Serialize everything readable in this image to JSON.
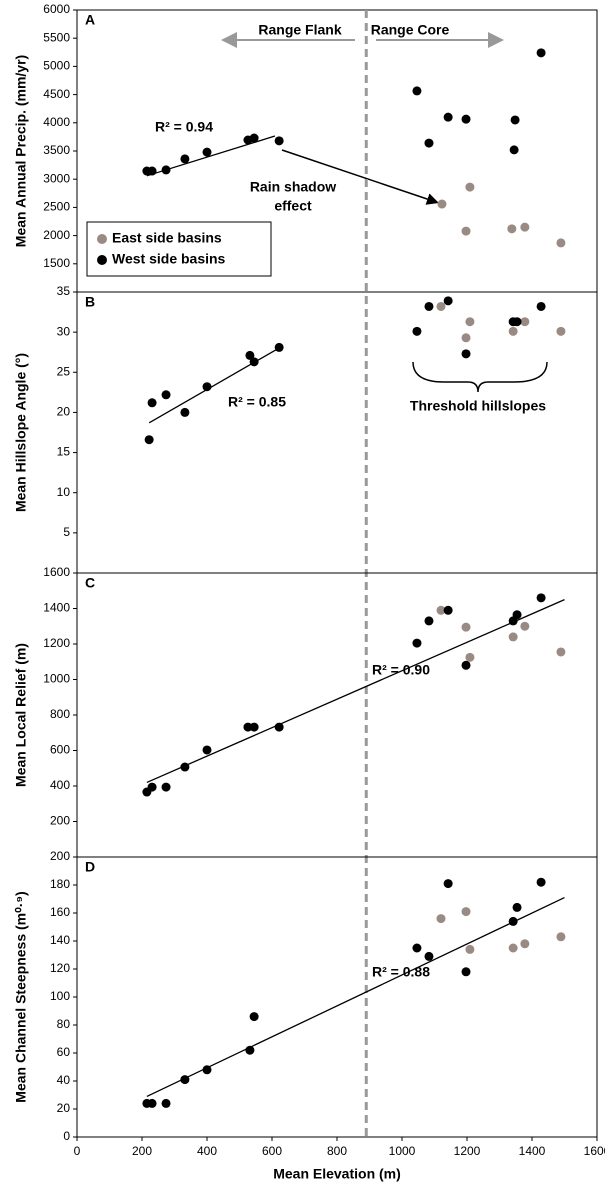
{
  "chart_data": [
    {
      "type": "scatter",
      "panel_label": "A",
      "ylabel": "Mean Annual Precip. (mm/yr)",
      "xlim": [
        0,
        1600
      ],
      "ylim": [
        1000,
        6000
      ],
      "yticks": [
        1500,
        2000,
        2500,
        3000,
        3500,
        4000,
        4500,
        5000,
        5500,
        6000
      ],
      "legend": "lower-left",
      "divider_x": 890,
      "annotations": {
        "flank": "Range Flank",
        "core": "Range Core",
        "shadow_1": "Rain shadow",
        "shadow_2": "effect"
      },
      "series": [
        {
          "name": "East side basins",
          "color": "#9a8a84",
          "x": [
            1123,
            1209,
            1197,
            1338,
            1378,
            1489
          ],
          "values": [
            2560,
            2860,
            2080,
            2120,
            2150,
            1870
          ]
        },
        {
          "name": "West side basins",
          "color": "#000000",
          "x": [
            215,
            231,
            274,
            332,
            400,
            526,
            545,
            622,
            1046,
            1083,
            1142,
            1197,
            1348,
            1345,
            1428
          ],
          "values": [
            3145,
            3145,
            3165,
            3360,
            3480,
            3695,
            3730,
            3680,
            4565,
            3640,
            4100,
            4065,
            4050,
            3520,
            5240
          ]
        }
      ],
      "trendline": {
        "x": [
          215,
          609
        ],
        "y": [
          3060,
          3765
        ]
      },
      "r2_label": "R² = 0.94"
    },
    {
      "type": "scatter",
      "panel_label": "B",
      "ylabel": "Mean Hillslope  Angle (°)",
      "xlim": [
        0,
        1600
      ],
      "ylim": [
        0,
        35
      ],
      "yticks": [
        5,
        10,
        15,
        20,
        25,
        30,
        35
      ],
      "annotations": {
        "threshold": "Threshold hillslopes"
      },
      "series": [
        {
          "color": "#9a8a84",
          "x": [
            1120,
            1197,
            1209,
            1342,
            1378,
            1489
          ],
          "values": [
            33.2,
            29.3,
            31.3,
            30.1,
            31.3,
            30.1
          ]
        },
        {
          "color": "#000000",
          "x": [
            222,
            231,
            274,
            332,
            400,
            532,
            545,
            622,
            1046,
            1083,
            1142,
            1197,
            1342,
            1354,
            1428
          ],
          "values": [
            16.6,
            21.2,
            22.2,
            20.0,
            23.2,
            27.1,
            26.3,
            28.1,
            30.1,
            33.2,
            33.9,
            27.3,
            31.3,
            31.3,
            33.2
          ]
        }
      ],
      "trendline": {
        "x": [
          222,
          625
        ],
        "y": [
          18.7,
          28.1
        ]
      },
      "r2_label": "R² = 0.85"
    },
    {
      "type": "scatter",
      "panel_label": "C",
      "ylabel": "Mean Local Relief (m)",
      "xlim": [
        0,
        1600
      ],
      "ylim": [
        0,
        1600
      ],
      "yticks": [
        200,
        400,
        600,
        800,
        1000,
        1200,
        1400,
        1600
      ],
      "series": [
        {
          "color": "#9a8a84",
          "x": [
            1120,
            1197,
            1209,
            1342,
            1378,
            1489
          ],
          "values": [
            1390,
            1295,
            1125,
            1240,
            1300,
            1155
          ]
        },
        {
          "color": "#000000",
          "x": [
            215,
            231,
            274,
            332,
            400,
            526,
            545,
            622,
            1046,
            1083,
            1142,
            1197,
            1342,
            1354,
            1428
          ],
          "values": [
            366,
            394,
            394,
            507,
            603,
            732,
            732,
            732,
            1205,
            1330,
            1390,
            1080,
            1330,
            1365,
            1460
          ]
        }
      ],
      "trendline": {
        "x": [
          215,
          1500
        ],
        "y": [
          420,
          1450
        ]
      },
      "r2_label": "R² = 0.90"
    },
    {
      "type": "scatter",
      "panel_label": "D",
      "ylabel": "Mean Channel Steepness (m⁰·⁹)",
      "xlabel": "Mean Elevation (m)",
      "xlim": [
        0,
        1600
      ],
      "xticks": [
        0,
        200,
        400,
        600,
        800,
        1000,
        1200,
        1400,
        1600
      ],
      "ylim": [
        0,
        200
      ],
      "yticks": [
        0,
        20,
        40,
        60,
        80,
        100,
        120,
        140,
        160,
        180,
        200
      ],
      "series": [
        {
          "color": "#9a8a84",
          "x": [
            1120,
            1197,
            1209,
            1342,
            1378,
            1489
          ],
          "values": [
            156,
            161,
            134,
            135,
            138,
            143
          ]
        },
        {
          "color": "#000000",
          "x": [
            215,
            231,
            274,
            332,
            400,
            532,
            545,
            1046,
            1083,
            1142,
            1197,
            1342,
            1354,
            1428
          ],
          "values": [
            24,
            24,
            24,
            41,
            48,
            62,
            86,
            135,
            129,
            181,
            118,
            154,
            164,
            182
          ]
        }
      ],
      "trendline": {
        "x": [
          215,
          1500
        ],
        "y": [
          29,
          171
        ]
      },
      "r2_label": "R² = 0.88"
    }
  ]
}
